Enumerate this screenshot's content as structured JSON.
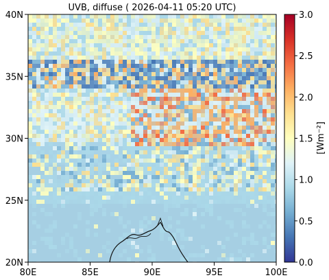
{
  "title": "UVB, diffuse ( 2026-04-11 05:20 UTC)",
  "map": {
    "lon_range": [
      80,
      100
    ],
    "lat_range": [
      20,
      40
    ],
    "x_ticks": [
      "80E",
      "85E",
      "90E",
      "95E",
      "100E"
    ],
    "x_tick_values": [
      80,
      85,
      90,
      95,
      100
    ],
    "y_ticks": [
      "20N",
      "25N",
      "30N",
      "35N",
      "40N"
    ],
    "y_tick_values": [
      20,
      25,
      30,
      35,
      40
    ]
  },
  "colorbar": {
    "label": "[Wm⁻²]",
    "range": [
      0.0,
      3.0
    ],
    "tick_labels": [
      "0.0",
      "0.5",
      "1.0",
      "1.5",
      "2.0",
      "2.5",
      "3.0"
    ],
    "tick_values": [
      0,
      0.5,
      1.0,
      1.5,
      2.0,
      2.5,
      3.0
    ],
    "colormap_stops": [
      "#313695",
      "#4575b4",
      "#74add1",
      "#abd9e9",
      "#e0f3f8",
      "#ffffbf",
      "#fee090",
      "#fdae61",
      "#f46d43",
      "#d73027",
      "#a50026"
    ]
  }
}
